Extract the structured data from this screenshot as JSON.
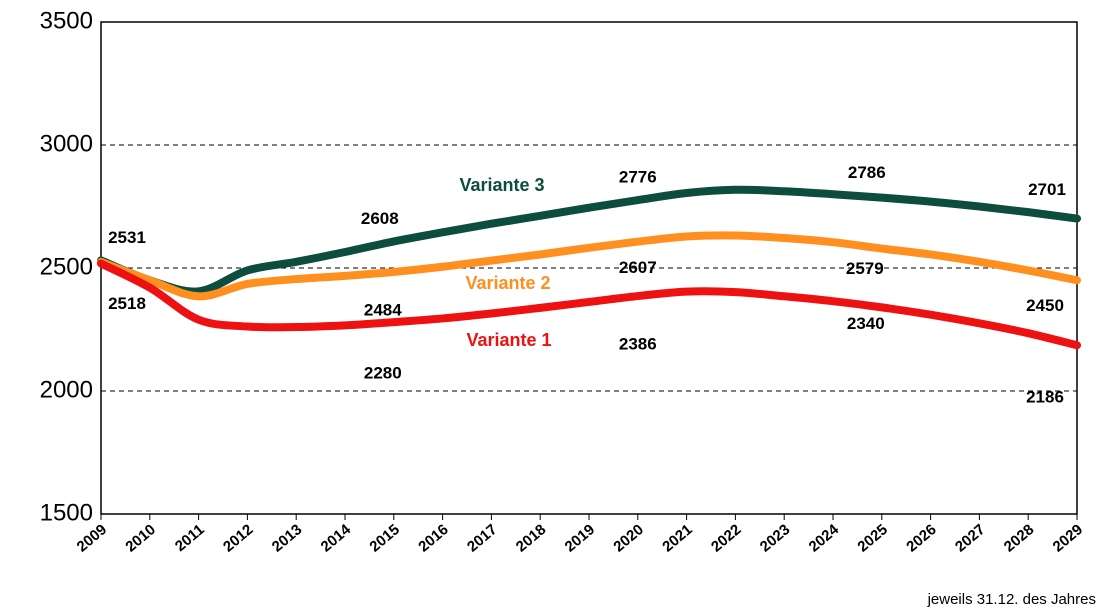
{
  "chart_data": {
    "type": "line",
    "x": [
      2009,
      2010,
      2011,
      2012,
      2013,
      2014,
      2015,
      2016,
      2017,
      2018,
      2019,
      2020,
      2021,
      2022,
      2023,
      2024,
      2025,
      2026,
      2027,
      2028,
      2029
    ],
    "xlim": [
      2009,
      2029
    ],
    "xticks": [
      2009,
      2010,
      2011,
      2012,
      2013,
      2014,
      2015,
      2016,
      2017,
      2018,
      2019,
      2020,
      2021,
      2022,
      2023,
      2024,
      2025,
      2026,
      2027,
      2028,
      2029
    ],
    "ylim": [
      1500,
      3500
    ],
    "yticks": [
      1500,
      2000,
      2500,
      3000,
      3500
    ],
    "grid": true,
    "note": "jeweils 31.12. des Jahres",
    "series": [
      {
        "name": "Variante 3",
        "color": "#0d4d3d",
        "values": [
          2531,
          2450,
          2405,
          2490,
          2525,
          2565,
          2608,
          2645,
          2680,
          2712,
          2745,
          2776,
          2805,
          2818,
          2812,
          2800,
          2786,
          2770,
          2750,
          2727,
          2701
        ],
        "value_labels": [
          "2531",
          null,
          null,
          null,
          null,
          null,
          "2608",
          null,
          null,
          null,
          null,
          "2776",
          null,
          null,
          null,
          null,
          "2786",
          null,
          null,
          null,
          "2701"
        ]
      },
      {
        "name": "Variante 2",
        "color": "#ff9020",
        "values": [
          2525,
          2450,
          2385,
          2435,
          2455,
          2468,
          2484,
          2505,
          2530,
          2555,
          2582,
          2607,
          2628,
          2632,
          2622,
          2605,
          2579,
          2555,
          2525,
          2490,
          2450
        ],
        "value_labels": [
          null,
          null,
          null,
          null,
          null,
          null,
          "2484",
          null,
          null,
          null,
          null,
          "2607",
          null,
          null,
          null,
          null,
          "2579",
          null,
          null,
          null,
          "2450"
        ]
      },
      {
        "name": "Variante 1",
        "color": "#ee1111",
        "values": [
          2518,
          2420,
          2290,
          2262,
          2260,
          2267,
          2280,
          2295,
          2315,
          2338,
          2362,
          2386,
          2404,
          2402,
          2385,
          2365,
          2340,
          2310,
          2275,
          2235,
          2186
        ],
        "value_labels": [
          "2518",
          null,
          null,
          null,
          null,
          null,
          "2280",
          null,
          null,
          null,
          null,
          "2386",
          null,
          null,
          null,
          null,
          "2340",
          null,
          null,
          null,
          "2186"
        ]
      }
    ]
  }
}
